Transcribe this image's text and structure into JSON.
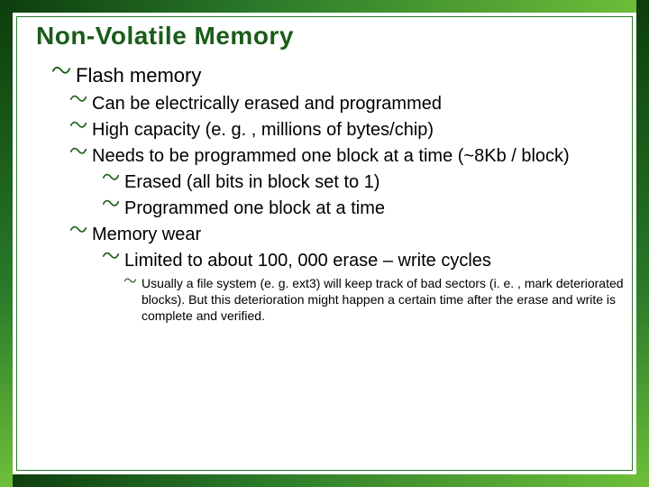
{
  "slide": {
    "title": "Non-Volatile Memory",
    "title_color": "#1a5c1a",
    "title_fontsize": 28,
    "bullet_glyph_color": "#1a5c1a",
    "body_font": "Verdana",
    "frame_gradient": [
      "#0d3d0d",
      "#1a5c1a",
      "#2a7a2a",
      "#6fbf3a"
    ],
    "background_color": "#ffffff",
    "bullets": [
      {
        "level": 0,
        "fontsize": 22,
        "text": "Flash memory"
      },
      {
        "level": 1,
        "fontsize": 20,
        "text": "Can be electrically erased and programmed"
      },
      {
        "level": 1,
        "fontsize": 20,
        "text": "High capacity (e. g. , millions of bytes/chip)"
      },
      {
        "level": 1,
        "fontsize": 20,
        "text": "Needs to be programmed one block at a time (~8Kb / block)"
      },
      {
        "level": 2,
        "fontsize": 20,
        "text": "Erased (all bits in block set to 1)"
      },
      {
        "level": 2,
        "fontsize": 20,
        "text": "Programmed one block at a time"
      },
      {
        "level": 1,
        "fontsize": 20,
        "text": "Memory wear"
      },
      {
        "level": 2,
        "fontsize": 20,
        "text": "Limited to about 100, 000 erase – write cycles"
      },
      {
        "level": 3,
        "fontsize": 14,
        "text": "Usually a file system (e. g. ext3) will keep track of bad sectors (i. e. , mark deteriorated blocks). But this deterioration might happen a certain time after  the erase and write is complete and verified."
      }
    ]
  }
}
